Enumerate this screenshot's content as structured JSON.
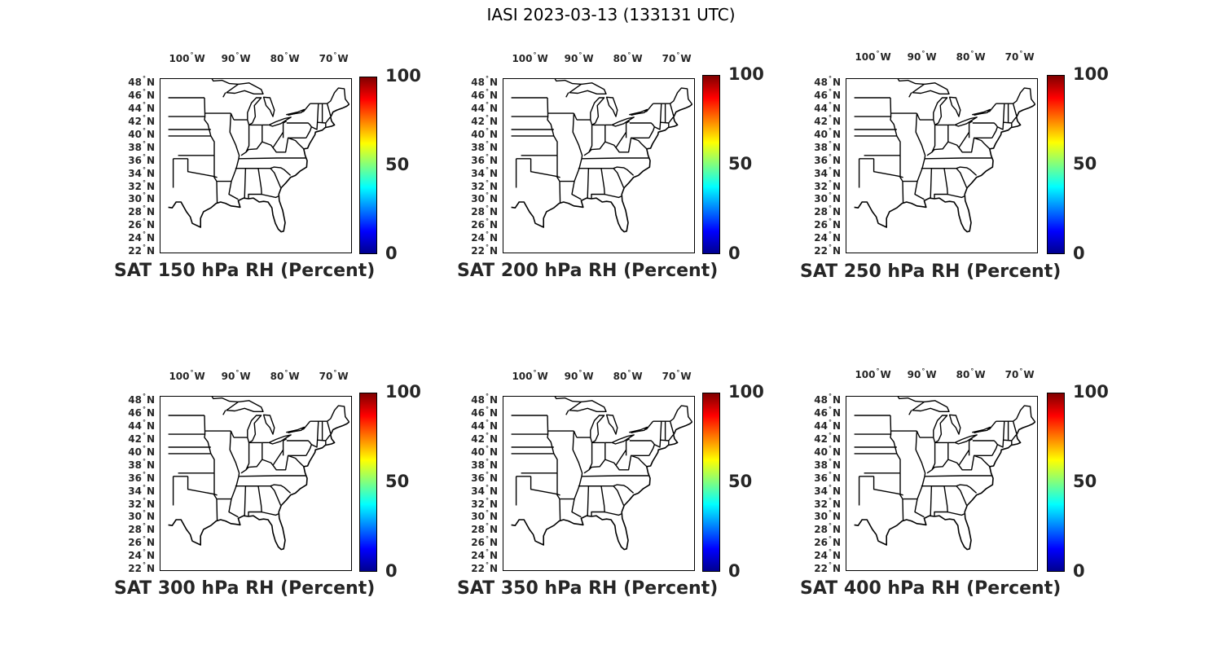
{
  "title": "IASI 2023-03-13 (133131 UTC)",
  "lon_ticks": [
    {
      "deg": "100",
      "hemi": "W",
      "lon": -100
    },
    {
      "deg": "90",
      "hemi": "W",
      "lon": -90
    },
    {
      "deg": "80",
      "hemi": "W",
      "lon": -80
    },
    {
      "deg": "70",
      "hemi": "W",
      "lon": -70
    }
  ],
  "lat_ticks": [
    {
      "deg": "48",
      "hemi": "N",
      "lat": 48
    },
    {
      "deg": "46",
      "hemi": "N",
      "lat": 46
    },
    {
      "deg": "44",
      "hemi": "N",
      "lat": 44
    },
    {
      "deg": "42",
      "hemi": "N",
      "lat": 42
    },
    {
      "deg": "40",
      "hemi": "N",
      "lat": 40
    },
    {
      "deg": "38",
      "hemi": "N",
      "lat": 38
    },
    {
      "deg": "36",
      "hemi": "N",
      "lat": 36
    },
    {
      "deg": "34",
      "hemi": "N",
      "lat": 34
    },
    {
      "deg": "32",
      "hemi": "N",
      "lat": 32
    },
    {
      "deg": "30",
      "hemi": "N",
      "lat": 30
    },
    {
      "deg": "28",
      "hemi": "N",
      "lat": 28
    },
    {
      "deg": "26",
      "hemi": "N",
      "lat": 26
    },
    {
      "deg": "24",
      "hemi": "N",
      "lat": 24
    },
    {
      "deg": "22",
      "hemi": "N",
      "lat": 22
    }
  ],
  "colorbar": {
    "ticks": [
      "100",
      "50",
      "0"
    ],
    "min": 0,
    "max": 100,
    "colormap": "jet",
    "colors": [
      "#00008f",
      "#0000ff",
      "#00ffff",
      "#ffff00",
      "#ff0000",
      "#800000"
    ]
  },
  "panels": [
    {
      "title": "SAT 150 hPa RH (Percent)"
    },
    {
      "title": "SAT 200 hPa RH (Percent)"
    },
    {
      "title": "SAT 250 hPa RH (Percent)"
    },
    {
      "title": "SAT 300 hPa RH (Percent)"
    },
    {
      "title": "SAT 350 hPa RH (Percent)"
    },
    {
      "title": "SAT 400 hPa RH (Percent)"
    }
  ]
}
